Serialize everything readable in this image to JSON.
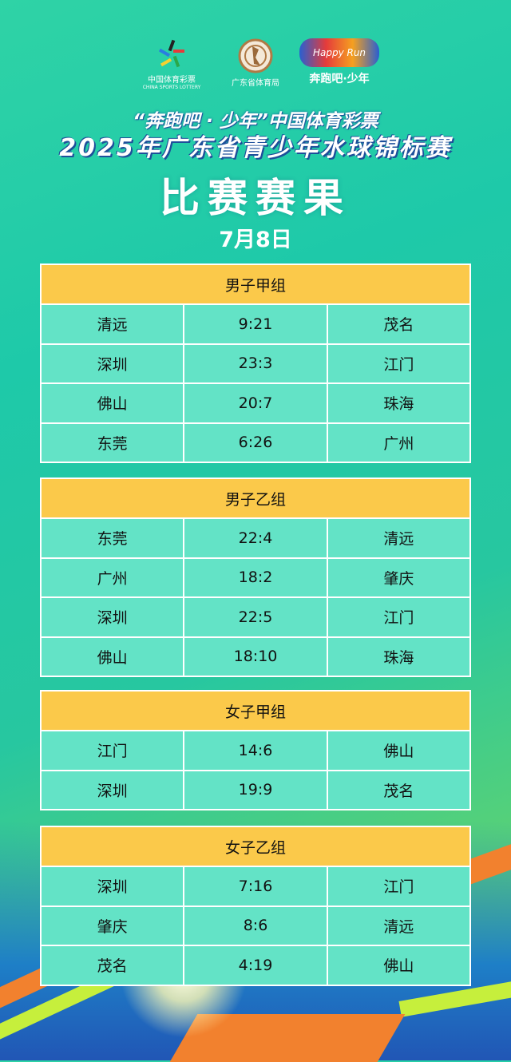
{
  "logos": {
    "lottery_cn": "中国体育彩票",
    "lottery_en": "CHINA SPORTS LOTTERY",
    "bureau": "广东省体育局",
    "happyrun_en": "Happy Run",
    "happyrun_cn": "奔跑吧·少年"
  },
  "title_line1": "“奔跑吧 · 少年”中国体育彩票",
  "title_line2": "2025年广东省青少年水球锦标赛",
  "title_main": "比赛赛果",
  "date": "7月8日",
  "colors": {
    "header": "#fbc94a",
    "cell": "#63e3c6"
  },
  "groups": [
    {
      "name": "男子甲组",
      "matches": [
        [
          "清远",
          "9:21",
          "茂名"
        ],
        [
          "深圳",
          "23:3",
          "江门"
        ],
        [
          "佛山",
          "20:7",
          "珠海"
        ],
        [
          "东莞",
          "6:26",
          "广州"
        ]
      ]
    },
    {
      "name": "男子乙组",
      "matches": [
        [
          "东莞",
          "22:4",
          "清远"
        ],
        [
          "广州",
          "18:2",
          "肇庆"
        ],
        [
          "深圳",
          "22:5",
          "江门"
        ],
        [
          "佛山",
          "18:10",
          "珠海"
        ]
      ]
    },
    {
      "name": "女子甲组",
      "matches": [
        [
          "江门",
          "14:6",
          "佛山"
        ],
        [
          "深圳",
          "19:9",
          "茂名"
        ]
      ]
    },
    {
      "name": "女子乙组",
      "matches": [
        [
          "深圳",
          "7:16",
          "江门"
        ],
        [
          "肇庆",
          "8:6",
          "清远"
        ],
        [
          "茂名",
          "4:19",
          "佛山"
        ]
      ]
    }
  ]
}
